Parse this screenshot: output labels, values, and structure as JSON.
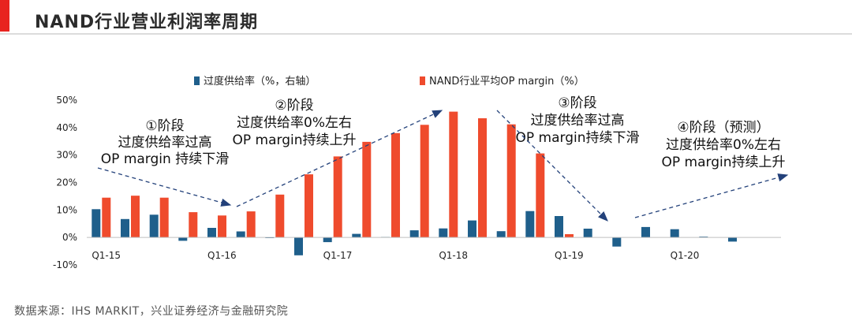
{
  "title": "NAND行业营业利润率周期",
  "source": "数据来源：IHS MARKIT，兴业证券经济与金融研究院",
  "colors": {
    "accent": "#e8231f",
    "series_oversupply": "#1f5f8b",
    "series_margin": "#ef4b2d",
    "arrow": "#23417a"
  },
  "chart_data": {
    "type": "bar",
    "title": "",
    "xlabel": "",
    "ylabel": "",
    "ylim": [
      -10,
      50
    ],
    "y_ticks": [
      "50%",
      "40%",
      "30%",
      "20%",
      "10%",
      "0%",
      "-10%"
    ],
    "y_tick_values": [
      50,
      40,
      30,
      20,
      10,
      0,
      -10
    ],
    "categories": [
      "Q1-15",
      "Q2-15",
      "Q3-15",
      "Q4-15",
      "Q1-16",
      "Q2-16",
      "Q3-16",
      "Q4-16",
      "Q1-17",
      "Q2-17",
      "Q3-17",
      "Q4-17",
      "Q1-18",
      "Q2-18",
      "Q3-18",
      "Q4-18",
      "Q1-19",
      "Q2-19",
      "Q3-19",
      "Q4-19",
      "Q1-20",
      "Q2-20",
      "Q3-20",
      "Q4-20"
    ],
    "x_labels": [
      {
        "index": 0,
        "text": "Q1-15"
      },
      {
        "index": 4,
        "text": "Q1-16"
      },
      {
        "index": 8,
        "text": "Q1-17"
      },
      {
        "index": 12,
        "text": "Q1-18"
      },
      {
        "index": 16,
        "text": "Q1-19"
      },
      {
        "index": 20,
        "text": "Q1-20"
      }
    ],
    "series": [
      {
        "name": "过度供给率（%，右轴）",
        "color": "#1f5f8b",
        "values": [
          10.3,
          6.7,
          8.3,
          -1.2,
          3.5,
          2.2,
          -0.2,
          -6.5,
          -1.7,
          1.3,
          0.2,
          2.6,
          3.3,
          6.2,
          2.3,
          9.6,
          7.8,
          3.2,
          -3.3,
          3.8,
          3.0,
          0.3,
          -1.5,
          null
        ]
      },
      {
        "name": "NAND行业平均OP margin（%）",
        "color": "#ef4b2d",
        "values": [
          14.5,
          15.2,
          14.5,
          9.2,
          8.0,
          9.5,
          15.6,
          23.0,
          29.5,
          34.8,
          38.0,
          41.0,
          45.8,
          43.4,
          41.2,
          30.6,
          1.2,
          null,
          null,
          null,
          null,
          null,
          null,
          null
        ]
      }
    ],
    "legend": "top",
    "grid": false,
    "annotations": [
      {
        "lines": [
          "①阶段",
          "过度供给率过高",
          "OP margin 持续下滑"
        ]
      },
      {
        "lines": [
          "②阶段",
          "过度供给率0%左右",
          "OP margin持续上升"
        ]
      },
      {
        "lines": [
          "③阶段",
          "过度供给率过高",
          "OP margin持续下滑"
        ]
      },
      {
        "lines": [
          "④阶段（预测）",
          "过度供给率0%左右",
          "OP margin持续上升"
        ]
      }
    ]
  }
}
